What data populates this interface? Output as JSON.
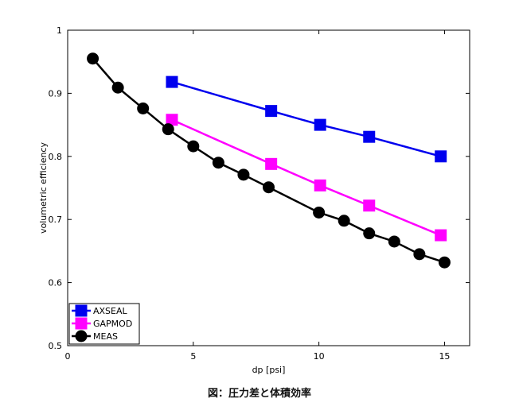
{
  "caption": "図：圧力差と体積効率",
  "chart_data": {
    "type": "line",
    "title": "",
    "xlabel": "dp [psi]",
    "ylabel": "volumetric efficiency",
    "xlim": [
      0,
      16
    ],
    "ylim": [
      0.5,
      1
    ],
    "xticks": [
      0,
      5,
      10,
      15
    ],
    "yticks": [
      0.5,
      0.6,
      0.7,
      0.8,
      0.9,
      1
    ],
    "grid": false,
    "legend_position": "bottom-left",
    "series": [
      {
        "name": "AXSEAL",
        "color": "#0000ee",
        "marker": "square",
        "x": [
          4.15,
          8.1,
          10.05,
          12.0,
          14.85
        ],
        "y": [
          0.918,
          0.872,
          0.85,
          0.831,
          0.8
        ]
      },
      {
        "name": "GAPMOD",
        "color": "#ff00ff",
        "marker": "square",
        "x": [
          4.15,
          8.1,
          10.05,
          12.0,
          14.85
        ],
        "y": [
          0.858,
          0.788,
          0.754,
          0.722,
          0.675
        ]
      },
      {
        "name": "MEAS",
        "color": "#000000",
        "marker": "circle",
        "x": [
          1,
          2,
          3,
          4,
          5,
          6,
          7,
          8,
          10,
          11,
          12,
          13,
          14,
          15
        ],
        "y": [
          0.955,
          0.909,
          0.876,
          0.843,
          0.816,
          0.79,
          0.771,
          0.751,
          0.711,
          0.698,
          0.678,
          0.665,
          0.645,
          0.632
        ]
      }
    ]
  }
}
